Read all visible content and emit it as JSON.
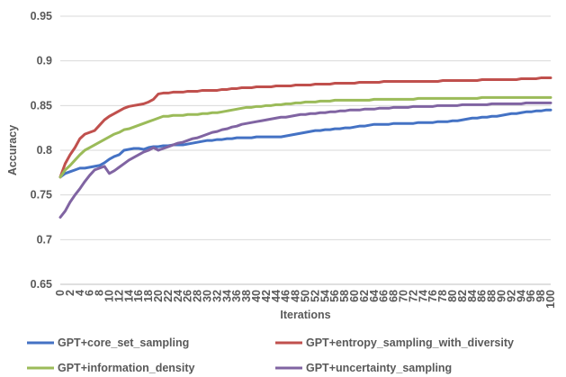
{
  "chart_data": {
    "type": "line",
    "title": "",
    "xlabel": "Iterations",
    "ylabel": "Accuracy",
    "xlim": [
      0,
      100
    ],
    "ylim": [
      0.65,
      0.95
    ],
    "grid": true,
    "legend_position": "bottom",
    "x_ticks": [
      0,
      2,
      4,
      6,
      8,
      10,
      12,
      14,
      16,
      18,
      20,
      22,
      24,
      26,
      28,
      30,
      32,
      34,
      36,
      38,
      40,
      42,
      44,
      46,
      48,
      50,
      52,
      54,
      56,
      58,
      60,
      62,
      64,
      66,
      68,
      70,
      72,
      74,
      76,
      78,
      80,
      82,
      84,
      86,
      88,
      90,
      92,
      94,
      96,
      98,
      100
    ],
    "y_ticks": [
      0.65,
      0.7,
      0.75,
      0.8,
      0.85,
      0.9,
      0.95
    ],
    "x": [
      0,
      1,
      2,
      3,
      4,
      5,
      6,
      7,
      8,
      9,
      10,
      11,
      12,
      13,
      14,
      15,
      16,
      17,
      18,
      19,
      20,
      21,
      22,
      23,
      24,
      25,
      26,
      27,
      28,
      29,
      30,
      31,
      32,
      33,
      34,
      35,
      36,
      37,
      38,
      39,
      40,
      41,
      42,
      43,
      44,
      45,
      46,
      47,
      48,
      49,
      50,
      51,
      52,
      53,
      54,
      55,
      56,
      57,
      58,
      59,
      60,
      61,
      62,
      63,
      64,
      65,
      66,
      67,
      68,
      69,
      70,
      71,
      72,
      73,
      74,
      75,
      76,
      77,
      78,
      79,
      80,
      81,
      82,
      83,
      84,
      85,
      86,
      87,
      88,
      89,
      90,
      91,
      92,
      93,
      94,
      95,
      96,
      97,
      98,
      99,
      100
    ],
    "series": [
      {
        "name": "GPT+core_set_sampling",
        "color": "#4472C4",
        "values": [
          0.77,
          0.774,
          0.776,
          0.778,
          0.78,
          0.78,
          0.781,
          0.782,
          0.783,
          0.786,
          0.79,
          0.793,
          0.795,
          0.8,
          0.801,
          0.802,
          0.802,
          0.801,
          0.803,
          0.804,
          0.804,
          0.805,
          0.805,
          0.806,
          0.806,
          0.806,
          0.807,
          0.808,
          0.809,
          0.81,
          0.811,
          0.811,
          0.812,
          0.812,
          0.813,
          0.813,
          0.814,
          0.814,
          0.814,
          0.814,
          0.815,
          0.815,
          0.815,
          0.815,
          0.815,
          0.815,
          0.816,
          0.817,
          0.818,
          0.819,
          0.82,
          0.821,
          0.822,
          0.822,
          0.823,
          0.823,
          0.824,
          0.824,
          0.825,
          0.825,
          0.826,
          0.827,
          0.827,
          0.828,
          0.829,
          0.829,
          0.829,
          0.829,
          0.83,
          0.83,
          0.83,
          0.83,
          0.83,
          0.831,
          0.831,
          0.831,
          0.831,
          0.832,
          0.832,
          0.832,
          0.833,
          0.833,
          0.834,
          0.835,
          0.836,
          0.836,
          0.837,
          0.837,
          0.838,
          0.838,
          0.839,
          0.84,
          0.841,
          0.841,
          0.842,
          0.843,
          0.843,
          0.844,
          0.844,
          0.845,
          0.845
        ]
      },
      {
        "name": "GPT+entropy_sampling_with_diversity",
        "color": "#C0504D",
        "values": [
          0.77,
          0.785,
          0.795,
          0.803,
          0.813,
          0.818,
          0.82,
          0.822,
          0.828,
          0.834,
          0.838,
          0.841,
          0.844,
          0.847,
          0.849,
          0.85,
          0.851,
          0.852,
          0.854,
          0.857,
          0.863,
          0.864,
          0.864,
          0.865,
          0.865,
          0.865,
          0.866,
          0.866,
          0.866,
          0.867,
          0.867,
          0.867,
          0.867,
          0.868,
          0.868,
          0.869,
          0.869,
          0.87,
          0.87,
          0.87,
          0.871,
          0.871,
          0.871,
          0.871,
          0.872,
          0.872,
          0.872,
          0.872,
          0.873,
          0.873,
          0.873,
          0.873,
          0.874,
          0.874,
          0.874,
          0.874,
          0.875,
          0.875,
          0.875,
          0.875,
          0.875,
          0.876,
          0.876,
          0.876,
          0.876,
          0.876,
          0.877,
          0.877,
          0.877,
          0.877,
          0.877,
          0.877,
          0.877,
          0.877,
          0.877,
          0.877,
          0.877,
          0.877,
          0.878,
          0.878,
          0.878,
          0.878,
          0.878,
          0.878,
          0.878,
          0.878,
          0.879,
          0.879,
          0.879,
          0.879,
          0.879,
          0.879,
          0.879,
          0.879,
          0.88,
          0.88,
          0.88,
          0.88,
          0.881,
          0.881,
          0.881
        ]
      },
      {
        "name": "GPT+information_density",
        "color": "#9BBB59",
        "values": [
          0.77,
          0.778,
          0.783,
          0.789,
          0.795,
          0.8,
          0.803,
          0.806,
          0.809,
          0.812,
          0.815,
          0.818,
          0.82,
          0.823,
          0.824,
          0.826,
          0.828,
          0.83,
          0.832,
          0.834,
          0.836,
          0.838,
          0.838,
          0.839,
          0.839,
          0.839,
          0.84,
          0.84,
          0.84,
          0.841,
          0.841,
          0.842,
          0.842,
          0.843,
          0.844,
          0.845,
          0.846,
          0.847,
          0.848,
          0.848,
          0.849,
          0.849,
          0.85,
          0.85,
          0.851,
          0.851,
          0.852,
          0.852,
          0.853,
          0.853,
          0.854,
          0.854,
          0.854,
          0.855,
          0.855,
          0.855,
          0.856,
          0.856,
          0.856,
          0.856,
          0.856,
          0.856,
          0.856,
          0.856,
          0.857,
          0.857,
          0.857,
          0.857,
          0.857,
          0.857,
          0.857,
          0.857,
          0.857,
          0.858,
          0.858,
          0.858,
          0.858,
          0.858,
          0.858,
          0.858,
          0.858,
          0.858,
          0.858,
          0.858,
          0.858,
          0.858,
          0.859,
          0.859,
          0.859,
          0.859,
          0.859,
          0.859,
          0.859,
          0.859,
          0.859,
          0.859,
          0.859,
          0.859,
          0.859,
          0.859,
          0.859
        ]
      },
      {
        "name": "GPT+uncertainty_sampling",
        "color": "#8064A2",
        "values": [
          0.725,
          0.732,
          0.742,
          0.75,
          0.757,
          0.765,
          0.772,
          0.778,
          0.78,
          0.782,
          0.774,
          0.777,
          0.781,
          0.785,
          0.789,
          0.792,
          0.795,
          0.798,
          0.8,
          0.803,
          0.8,
          0.802,
          0.804,
          0.806,
          0.808,
          0.809,
          0.811,
          0.813,
          0.814,
          0.816,
          0.818,
          0.82,
          0.821,
          0.823,
          0.824,
          0.826,
          0.827,
          0.829,
          0.83,
          0.831,
          0.832,
          0.833,
          0.834,
          0.835,
          0.836,
          0.837,
          0.837,
          0.838,
          0.839,
          0.84,
          0.84,
          0.841,
          0.841,
          0.842,
          0.842,
          0.843,
          0.843,
          0.844,
          0.844,
          0.845,
          0.845,
          0.845,
          0.846,
          0.846,
          0.846,
          0.847,
          0.847,
          0.847,
          0.848,
          0.848,
          0.848,
          0.848,
          0.849,
          0.849,
          0.849,
          0.849,
          0.849,
          0.85,
          0.85,
          0.85,
          0.85,
          0.85,
          0.851,
          0.851,
          0.851,
          0.851,
          0.851,
          0.851,
          0.852,
          0.852,
          0.852,
          0.852,
          0.852,
          0.852,
          0.852,
          0.853,
          0.853,
          0.853,
          0.853,
          0.853,
          0.853
        ]
      }
    ]
  }
}
